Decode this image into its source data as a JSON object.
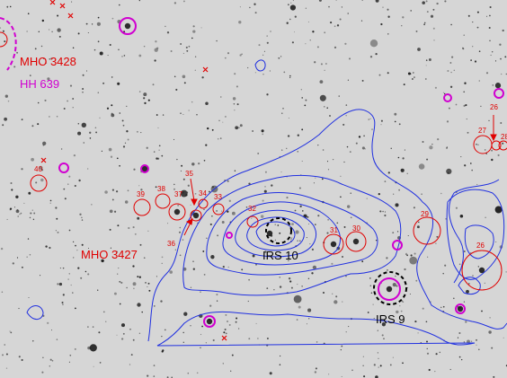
{
  "image": {
    "kind": "astronomical-field",
    "colors": {
      "background": "#d6d6d6",
      "star": "#1a1a1a",
      "contour": "#2030e0",
      "red": "#e00000",
      "magenta": "#d000d0",
      "black": "#000000"
    }
  },
  "labels": {
    "mho3428": "MHO 3428",
    "hh639": "HH 639",
    "mho3427": "MHO 3427",
    "irs10": "IRS 10",
    "irs9": "IRS 9"
  },
  "sources": {
    "s26a": "26",
    "s27": "27",
    "s28": "28",
    "s29": "29",
    "s30": "30",
    "s31": "31",
    "s32": "32",
    "s33": "33",
    "s34": "34",
    "s35": "35",
    "s36": "36",
    "s37": "37",
    "s38": "38",
    "s39": "39",
    "s40": "40",
    "s26b": "26"
  }
}
